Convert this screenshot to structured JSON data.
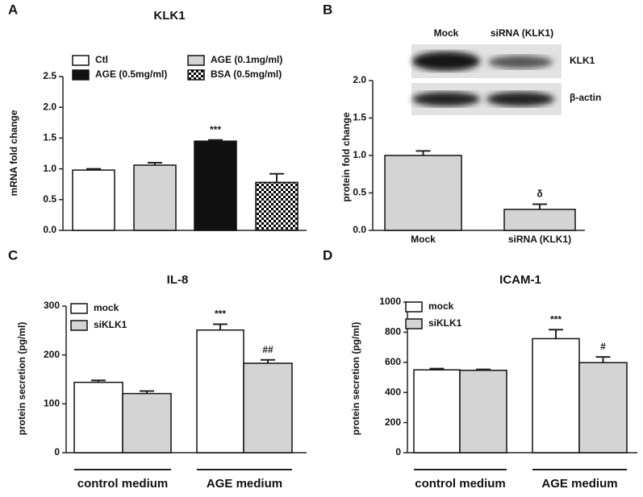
{
  "chart_data": [
    {
      "type": "bar",
      "panel": "A",
      "title": "KLK1",
      "ylabel": "mRNA fold change",
      "ylim": [
        0,
        2.5
      ],
      "yticks": [
        {
          "value": 0,
          "label": "0.0"
        },
        0.5,
        {
          "value": 1,
          "label": "1.0"
        },
        1.5,
        {
          "value": 2,
          "label": "2.0"
        },
        2.5
      ],
      "legend": true,
      "series": [
        {
          "name": "Ctl",
          "color": "#ffffff",
          "values": [
            0.98
          ],
          "errors": [
            0.02
          ]
        },
        {
          "name": "AGE (0.1mg/ml)",
          "color": "#d4d4d4",
          "values": [
            1.06
          ],
          "errors": [
            0.04
          ]
        },
        {
          "name": "AGE (0.5mg/ml)",
          "color": "#111111",
          "values": [
            1.45
          ],
          "errors": [
            0.02
          ],
          "annotations": [
            "***"
          ]
        },
        {
          "name": "BSA (0.5mg/ml)",
          "color": "#000000",
          "pattern": "checker",
          "values": [
            0.78
          ],
          "errors": [
            0.14
          ]
        }
      ]
    },
    {
      "type": "bar",
      "panel": "B",
      "ylabel": "protein fold change",
      "ylim": [
        0,
        2
      ],
      "yticks": [
        {
          "value": 0,
          "label": "0.0"
        },
        0.5,
        {
          "value": 1,
          "label": "1.0"
        },
        1.5,
        {
          "value": 2,
          "label": "2.0"
        }
      ],
      "categories": [
        "Mock",
        "siRNA (KLK1)"
      ],
      "color": "#d4d4d4",
      "values": [
        1.0,
        0.28
      ],
      "errors": [
        0.06,
        0.07
      ],
      "annotations": [
        null,
        "δ"
      ],
      "blot": {
        "lanes": [
          "Mock",
          "siRNA (KLK1)"
        ],
        "bands": [
          "KLK1",
          "β-actin"
        ]
      }
    },
    {
      "type": "bar",
      "panel": "C",
      "title": "IL-8",
      "ylabel": "protein secretion (pg/ml)",
      "ylim": [
        0,
        300
      ],
      "yticks": [
        0,
        100,
        200,
        300
      ],
      "legend": true,
      "categories": [
        "control medium",
        "AGE medium"
      ],
      "series": [
        {
          "name": "mock",
          "color": "#ffffff",
          "values": [
            144,
            251
          ],
          "errors": [
            4,
            12
          ],
          "annotations": [
            null,
            "***"
          ]
        },
        {
          "name": "siKLK1",
          "color": "#d4d4d4",
          "values": [
            121,
            183
          ],
          "errors": [
            5,
            7
          ],
          "annotations": [
            null,
            "##"
          ]
        }
      ]
    },
    {
      "type": "bar",
      "panel": "D",
      "title": "ICAM-1",
      "ylabel": "protein secretion (pg/ml)",
      "ylim": [
        0,
        1000
      ],
      "yticks": [
        0,
        200,
        400,
        600,
        800,
        1000
      ],
      "legend": true,
      "categories": [
        "control medium",
        "AGE medium"
      ],
      "series": [
        {
          "name": "mock",
          "color": "#ffffff",
          "values": [
            550,
            757
          ],
          "errors": [
            8,
            60
          ],
          "annotations": [
            null,
            "***"
          ]
        },
        {
          "name": "siKLK1",
          "color": "#d4d4d4",
          "values": [
            547,
            598
          ],
          "errors": [
            6,
            38
          ],
          "annotations": [
            null,
            "#"
          ]
        }
      ]
    }
  ]
}
